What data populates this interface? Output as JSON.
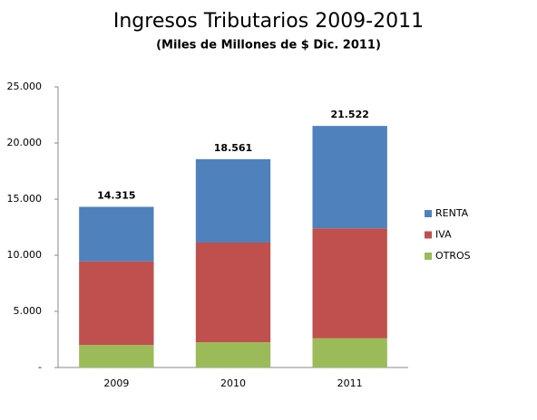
{
  "chart_data": {
    "type": "stacked_bar",
    "title": "Ingresos Tributarios 2009-2011",
    "subtitle": "(Miles de Millones de $ Dic. 2011)",
    "categories": [
      "2009",
      "2010",
      "2011"
    ],
    "series": [
      {
        "name": "OTROS",
        "color": "#9bbb59",
        "values": [
          2000,
          2250,
          2600
        ]
      },
      {
        "name": "IVA",
        "color": "#c0504d",
        "values": [
          7450,
          8880,
          9800
        ]
      },
      {
        "name": "RENTA",
        "color": "#4f81bd",
        "values": [
          4865,
          7431,
          9122
        ]
      }
    ],
    "totals": [
      14315,
      18561,
      21522
    ],
    "value_labels": [
      "14.315",
      "18.561",
      "21.522"
    ],
    "ylim": [
      0,
      25000
    ],
    "yticks": [
      {
        "value": 0,
        "label": "-"
      },
      {
        "value": 5000,
        "label": "5.000"
      },
      {
        "value": 10000,
        "label": "10.000"
      },
      {
        "value": 15000,
        "label": "15.000"
      },
      {
        "value": 20000,
        "label": "20.000"
      },
      {
        "value": 25000,
        "label": "25.000"
      }
    ],
    "legend": "right"
  }
}
